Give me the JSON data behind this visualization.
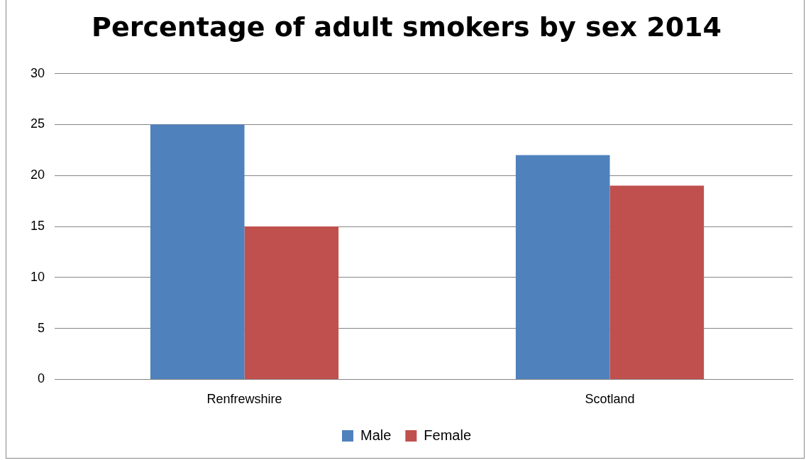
{
  "chart_data": {
    "type": "bar",
    "title": "Percentage of adult smokers by sex 2014",
    "categories": [
      "Renfrewshire",
      "Scotland"
    ],
    "series": [
      {
        "name": "Male",
        "color": "#4f81bd",
        "values": [
          25,
          22
        ]
      },
      {
        "name": "Female",
        "color": "#c0504d",
        "values": [
          15,
          19
        ]
      }
    ],
    "ylim": [
      0,
      30
    ],
    "yticks": [
      0,
      5,
      10,
      15,
      20,
      25,
      30
    ],
    "grid": "y",
    "legend": "bottom"
  }
}
